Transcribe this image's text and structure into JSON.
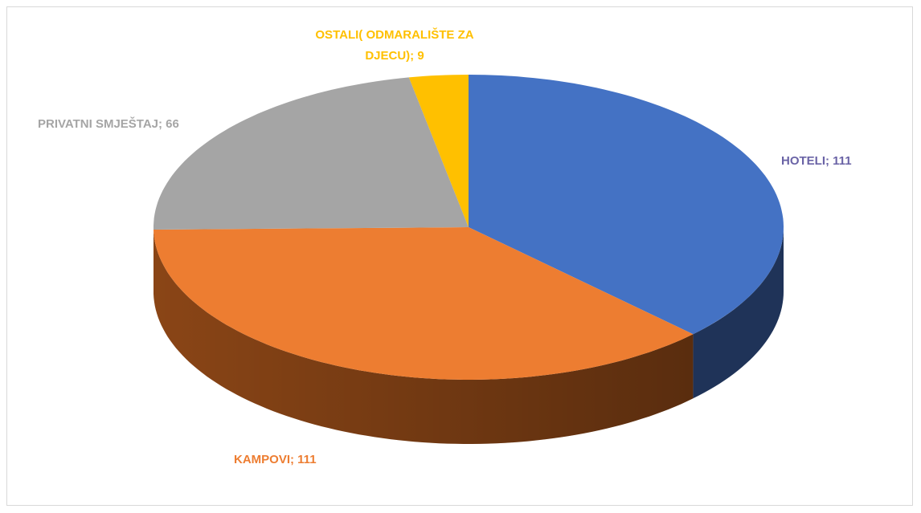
{
  "chart_data": {
    "type": "pie3d",
    "values": [
      111,
      111,
      66,
      9
    ],
    "value_labels": [
      "HOTELI; 111",
      "KAMPOVI; 111",
      "PRIVATNI SMJEŠTAJ; 66",
      "OSTALI( ODMARALIŠTE ZA DJECU); 9"
    ],
    "colors": [
      "#4472c4",
      "#ed7d31",
      "#a5a5a5",
      "#ffc000"
    ],
    "side_colors": [
      "#1f3358",
      "#8a4516",
      "#6e6e6e",
      "#9a7400"
    ],
    "label_colors": [
      "#6a63a6",
      "#ed7d31",
      "#a5a5a5",
      "#ffc000"
    ]
  }
}
